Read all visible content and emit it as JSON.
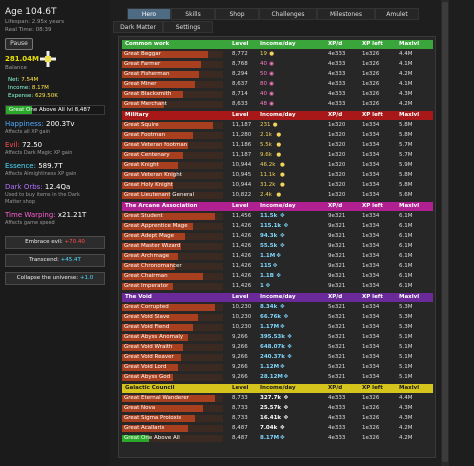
{
  "sidebar": {
    "age": "Age 104.6T",
    "lifespan": "Lifespan: 2.95x years",
    "real_time": "Real Time: 08:39",
    "pause_label": "Pause",
    "balance_value": "281.04M",
    "balance_label": "Balance",
    "net_label": "Net:",
    "net_value": "7.54M",
    "income_label": "Income:",
    "income_value": "8.17M",
    "expense_label": "Expense:",
    "expense_value": "629.50K",
    "great_one": "Great One Above All lvl 8,487",
    "great_one_progress": 0.27,
    "happiness_label": "Happiness:",
    "happiness_value": "200.3Tv",
    "happiness_desc": "Affects all XP gain",
    "evil_label": "Evil:",
    "evil_value": "72.50",
    "evil_desc": "Affects Dark Magic XP gain",
    "essence_label": "Essence:",
    "essence_value": "589.7T",
    "essence_desc": "Affects Almightiness XP gain",
    "dark_orbs_label": "Dark Orbs:",
    "dark_orbs_value": "12.4Qa",
    "dark_orbs_desc1": "Used to buy items in the Dark",
    "dark_orbs_desc2": "Matter shop",
    "time_warp_label": "Time Warping:",
    "time_warp_value": "x21.21T",
    "time_warp_desc": "Affects game speed",
    "embrace_label": "Embrace evil:",
    "embrace_value": "+70.40",
    "transcend_label": "Transcend:",
    "transcend_value": "+45.4T",
    "collapse_label": "Collapse the universe:",
    "collapse_value": "+1.0"
  },
  "nav": {
    "tabs": [
      "Hero",
      "Skills",
      "Shop",
      "Challenges",
      "Milestones",
      "Amulet",
      "Dark Matter",
      "Settings"
    ],
    "active": "Hero"
  },
  "headers": {
    "level": "Level",
    "income": "Income/day",
    "xpd": "XP/d",
    "xpl": "XP left",
    "max": "Maxlvl"
  },
  "sections": [
    {
      "title": "Common work",
      "color": "#3aa53a",
      "text_color": "#ffffff",
      "bar_color": "#a8401f",
      "rows": [
        {
          "name": "Great Beggar",
          "fill": 0.85,
          "level": "8,772",
          "income": "19",
          "icon": "gold",
          "xpd": "4e333",
          "xpl": "1e326",
          "max": "4.4M"
        },
        {
          "name": "Great Farmer",
          "fill": 0.78,
          "level": "8,768",
          "income": "40",
          "icon": "pink",
          "xpd": "4e333",
          "xpl": "1e326",
          "max": "4.1M"
        },
        {
          "name": "Great Fisherman",
          "fill": 0.76,
          "level": "8,294",
          "income": "50",
          "icon": "pink",
          "xpd": "4e333",
          "xpl": "1e326",
          "max": "4.2M"
        },
        {
          "name": "Great Miner",
          "fill": 0.72,
          "level": "8,637",
          "income": "80",
          "icon": "pink",
          "xpd": "4e333",
          "xpl": "1e326",
          "max": "4.1M"
        },
        {
          "name": "Great Blacksmith",
          "fill": 0.6,
          "level": "8,714",
          "income": "40",
          "icon": "pink",
          "xpd": "4e333",
          "xpl": "1e326",
          "max": "4.3M"
        },
        {
          "name": "Great Merchant",
          "fill": 0.42,
          "level": "8,633",
          "income": "48",
          "icon": "pink",
          "xpd": "4e333",
          "xpl": "1e326",
          "max": "4.2M"
        }
      ]
    },
    {
      "title": "Military",
      "color": "#a81818",
      "text_color": "#ffffff",
      "bar_color": "#a8401f",
      "rows": [
        {
          "name": "Great Squire",
          "fill": 0.9,
          "level": "11,187",
          "income": "231",
          "icon": "gold",
          "xpd": "1e320",
          "xpl": "1e334",
          "max": "5.8M"
        },
        {
          "name": "Great Footman",
          "fill": 0.7,
          "level": "11,280",
          "income": "2.1k",
          "icon": "gold",
          "xpd": "1e320",
          "xpl": "1e334",
          "max": "5.8M"
        },
        {
          "name": "Great Veteran footman",
          "fill": 0.65,
          "level": "11,186",
          "income": "5.5k",
          "icon": "gold",
          "xpd": "1e320",
          "xpl": "1e334",
          "max": "5.7M"
        },
        {
          "name": "Great Centenary",
          "fill": 0.6,
          "level": "11,187",
          "income": "9.6k",
          "icon": "gold",
          "xpd": "1e320",
          "xpl": "1e334",
          "max": "5.7M"
        },
        {
          "name": "Great Knight",
          "fill": 0.55,
          "level": "10,944",
          "income": "46.2k",
          "icon": "gold",
          "xpd": "1e320",
          "xpl": "1e334",
          "max": "5.9M"
        },
        {
          "name": "Great Veteran Knight",
          "fill": 0.52,
          "level": "10,945",
          "income": "11.1k",
          "icon": "gold",
          "xpd": "1e320",
          "xpl": "1e334",
          "max": "5.8M"
        },
        {
          "name": "Great Holy Knight",
          "fill": 0.5,
          "level": "10,944",
          "income": "31.2k",
          "icon": "gold",
          "xpd": "1e320",
          "xpl": "1e334",
          "max": "5.8M"
        },
        {
          "name": "Great Lieutenant General",
          "fill": 0.48,
          "level": "10,822",
          "income": "2.4k",
          "icon": "gold",
          "xpd": "1e320",
          "xpl": "1e334",
          "max": "5.6M"
        }
      ]
    },
    {
      "title": "The Arcane Association",
      "color": "#b02090",
      "text_color": "#ffffff",
      "bar_color": "#a8401f",
      "rows": [
        {
          "name": "Great Student",
          "fill": 0.92,
          "level": "11,456",
          "income": "11.5k",
          "icon": "cyan",
          "xpd": "9e321",
          "xpl": "1e334",
          "max": "6.1M"
        },
        {
          "name": "Great Apprentice Mage",
          "fill": 0.7,
          "level": "11,426",
          "income": "115.1k",
          "icon": "cyan",
          "xpd": "9e321",
          "xpl": "1e334",
          "max": "6.1M"
        },
        {
          "name": "Great Adept Mage",
          "fill": 0.62,
          "level": "11,426",
          "income": "94.3k",
          "icon": "cyan",
          "xpd": "9e321",
          "xpl": "1e334",
          "max": "6.1M"
        },
        {
          "name": "Great Master Wizard",
          "fill": 0.58,
          "level": "11,426",
          "income": "55.5k",
          "icon": "cyan",
          "xpd": "9e321",
          "xpl": "1e334",
          "max": "6.1M"
        },
        {
          "name": "Great Archmage",
          "fill": 0.55,
          "level": "11,426",
          "income": "1.1M",
          "icon": "cyan",
          "xpd": "9e321",
          "xpl": "1e334",
          "max": "6.1M"
        },
        {
          "name": "Great Chronomancer",
          "fill": 0.52,
          "level": "11,426",
          "income": "115",
          "icon": "cyan",
          "xpd": "9e321",
          "xpl": "1e334",
          "max": "6.1M"
        },
        {
          "name": "Great Chairman",
          "fill": 0.8,
          "level": "11,426",
          "income": "1.1B",
          "icon": "cyan",
          "xpd": "9e321",
          "xpl": "1e334",
          "max": "6.1M"
        },
        {
          "name": "Great Imperator",
          "fill": 0.5,
          "level": "11,426",
          "income": "1",
          "icon": "cyan",
          "xpd": "9e321",
          "xpl": "1e334",
          "max": "6.1M"
        }
      ]
    },
    {
      "title": "The Void",
      "color": "#6a2a9a",
      "text_color": "#ffffff",
      "bar_color": "#a8401f",
      "rows": [
        {
          "name": "Great Corrupted",
          "fill": 0.92,
          "level": "10,230",
          "income": "8.34k",
          "icon": "cyan",
          "xpd": "5e321",
          "xpl": "1e334",
          "max": "5.3M"
        },
        {
          "name": "Great Void Slave",
          "fill": 0.75,
          "level": "10,230",
          "income": "66.76k",
          "icon": "cyan",
          "xpd": "5e321",
          "xpl": "1e334",
          "max": "5.3M"
        },
        {
          "name": "Great Void Fiend",
          "fill": 0.7,
          "level": "10,230",
          "income": "1.17M",
          "icon": "cyan",
          "xpd": "5e321",
          "xpl": "1e334",
          "max": "5.3M"
        },
        {
          "name": "Great Abyss Anomaly",
          "fill": 0.65,
          "level": "9,266",
          "income": "395.53k",
          "icon": "cyan",
          "xpd": "5e321",
          "xpl": "1e334",
          "max": "5.1M"
        },
        {
          "name": "Great Void Wraith",
          "fill": 0.6,
          "level": "9,266",
          "income": "648.07k",
          "icon": "cyan",
          "xpd": "5e321",
          "xpl": "1e334",
          "max": "5.1M"
        },
        {
          "name": "Great Void Reaver",
          "fill": 0.58,
          "level": "9,266",
          "income": "240.37k",
          "icon": "cyan",
          "xpd": "5e321",
          "xpl": "1e334",
          "max": "5.1M"
        },
        {
          "name": "Great Void Lord",
          "fill": 0.55,
          "level": "9,266",
          "income": "1.12M",
          "icon": "cyan",
          "xpd": "5e321",
          "xpl": "1e334",
          "max": "5.1M"
        },
        {
          "name": "Great Abyss God",
          "fill": 0.5,
          "level": "9,266",
          "income": "28.12M",
          "icon": "cyan",
          "xpd": "5e321",
          "xpl": "1e334",
          "max": "5.1M"
        }
      ]
    },
    {
      "title": "Galactic Council",
      "color": "#d4c41c",
      "text_color": "#1a1a1a",
      "bar_color": "#a8401f",
      "rows": [
        {
          "name": "Great Eternal Wanderer",
          "fill": 0.92,
          "level": "8,733",
          "income": "327.7k",
          "icon": "white",
          "xpd": "4e333",
          "xpl": "1e326",
          "max": "4.4M"
        },
        {
          "name": "Great Nova",
          "fill": 0.8,
          "level": "8,733",
          "income": "25.57k",
          "icon": "white",
          "xpd": "4e333",
          "xpl": "1e326",
          "max": "4.3M"
        },
        {
          "name": "Great Sigma Proioxis",
          "fill": 0.72,
          "level": "8,733",
          "income": "16.41k",
          "icon": "white",
          "xpd": "4e333",
          "xpl": "1e326",
          "max": "4.3M"
        },
        {
          "name": "Great Acallaris",
          "fill": 0.65,
          "level": "8,487",
          "income": "7.04k",
          "icon": "white",
          "xpd": "4e333",
          "xpl": "1e326",
          "max": "4.2M"
        },
        {
          "name": "Great One Above All",
          "fill": 0.27,
          "level": "8,487",
          "income": "8.17M",
          "icon": "cyan",
          "xpd": "4e333",
          "xpl": "1e326",
          "max": "4.2M",
          "green": true
        }
      ]
    }
  ]
}
